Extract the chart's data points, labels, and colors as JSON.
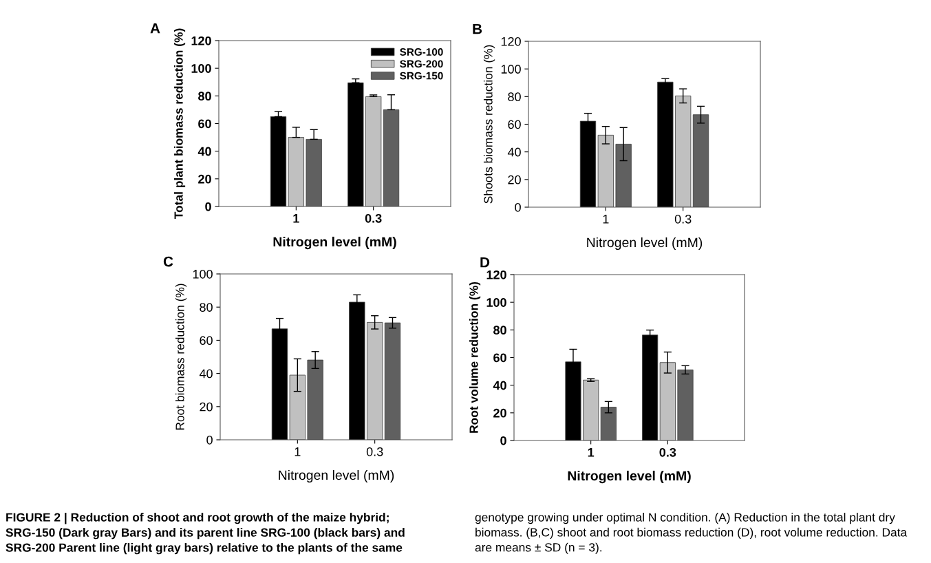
{
  "chart_data": [
    {
      "type": "bar",
      "title": "A",
      "xlabel": "Nitrogen level (mM)",
      "ylabel": "Total plant biomass reduction (%)",
      "categories": [
        "1",
        "0.3"
      ],
      "ylim": [
        0,
        120
      ],
      "yticks": [
        0,
        20,
        40,
        60,
        80,
        100,
        120
      ],
      "legend": "top right",
      "grid": false,
      "series": [
        {
          "name": "SRG-100",
          "color": "#000000",
          "values": [
            65,
            89.5
          ],
          "errors": [
            [
              65,
              68.7
            ],
            [
              89.5,
              92.3
            ]
          ]
        },
        {
          "name": "SRG-200",
          "color": "#c0c0c0",
          "values": [
            50,
            79.5
          ],
          "errors": [
            [
              50,
              57.3
            ],
            [
              79.5,
              80.7
            ]
          ]
        },
        {
          "name": "SRG-150",
          "color": "#606060",
          "values": [
            48.6,
            70
          ],
          "errors": [
            [
              48.6,
              55.6
            ],
            [
              70,
              80.8
            ]
          ]
        }
      ]
    },
    {
      "type": "bar",
      "title": "B",
      "xlabel": "Nitrogen level (mM)",
      "ylabel": "Shoots biomass reduction (%)",
      "categories": [
        "1",
        "0.3"
      ],
      "ylim": [
        0,
        120
      ],
      "yticks": [
        0,
        20,
        40,
        60,
        80,
        100,
        120
      ],
      "grid": false,
      "series": [
        {
          "color": "#000000",
          "values": [
            62.2,
            90.5
          ],
          "errors": [
            5.7,
            2.5
          ]
        },
        {
          "color": "#c0c0c0",
          "values": [
            52.1,
            80.5
          ],
          "errors": [
            6.3,
            5.1
          ]
        },
        {
          "color": "#606060",
          "values": [
            45.6,
            66.9
          ],
          "errors": [
            12,
            6.1
          ]
        }
      ]
    },
    {
      "type": "bar",
      "title": "C",
      "xlabel": "Nitrogen level (mM)",
      "ylabel": "Root biomass reduction (%)",
      "categories": [
        "1",
        "0.3"
      ],
      "ylim": [
        0,
        100
      ],
      "yticks": [
        0,
        20,
        40,
        60,
        80,
        100
      ],
      "grid": false,
      "series": [
        {
          "color": "#000000",
          "values": [
            66.9,
            83
          ],
          "errors": [
            6.3,
            4.4
          ]
        },
        {
          "color": "#c0c0c0",
          "values": [
            39,
            70.8
          ],
          "errors": [
            9.8,
            4
          ]
        },
        {
          "color": "#606060",
          "values": [
            48.1,
            70.5
          ],
          "errors": [
            5.1,
            3.2
          ]
        }
      ]
    },
    {
      "type": "bar",
      "title": "D",
      "xlabel": "Nitrogen level (mM)",
      "ylabel": "Root volume reduction (%)",
      "categories": [
        "1",
        "0.3"
      ],
      "ylim": [
        0,
        120
      ],
      "yticks": [
        0,
        20,
        40,
        60,
        80,
        100,
        120
      ],
      "grid": false,
      "series": [
        {
          "color": "#000000",
          "values": [
            56.9,
            76.3
          ],
          "errors": [
            9.1,
            3.6
          ]
        },
        {
          "color": "#c0c0c0",
          "values": [
            43.7,
            56.4
          ],
          "errors": [
            1,
            7.6
          ]
        },
        {
          "color": "#606060",
          "values": [
            24.1,
            51.1
          ],
          "errors": [
            4.1,
            3
          ]
        }
      ],
      "annotations": [
        "FIGURE 2 | Reduction of shoot and root growth of the maize hybrid; SRG-150 (Dark gray Bars) and its parent line SRG-100 (black bars) and SRG-200 Parent line (light gray bars) relative to the plants of the same",
        "genotype growing under optimal N condition. (A) Reduction in the total plant dry biomass. (B,C) shoot and root biomass reduction (D), root volume reduction. Data are means ± SD (n = 3)."
      ]
    }
  ]
}
